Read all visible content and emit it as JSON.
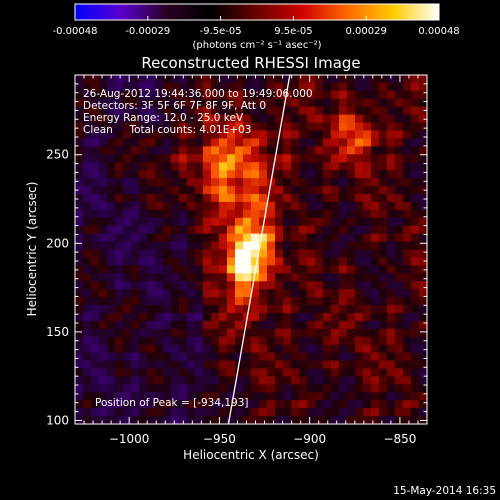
{
  "colorbar": {
    "tick_labels": [
      "-0.00048",
      "-0.00029",
      "-9.5e-05",
      "9.5e-05",
      "0.00029",
      "0.00048"
    ],
    "units_label": "(photons cm⁻² s⁻¹ asec⁻²)",
    "colors": [
      "#0000ff",
      "#5a00d0",
      "#2a0025",
      "#000000",
      "#6a0000",
      "#d00000",
      "#ff6a00",
      "#ffcc00",
      "#ffffff"
    ]
  },
  "chart_data": {
    "type": "heatmap",
    "title": "Reconstructed RHESSI Image",
    "xlabel": "Heliocentric X (arcsec)",
    "ylabel": "Heliocentric Y (arcsec)",
    "xlim": [
      -1030,
      -835
    ],
    "ylim": [
      98,
      295
    ],
    "x_ticks": [
      -1000,
      -950,
      -900,
      -850
    ],
    "x_tick_labels": [
      "−1000",
      "−950",
      "−900",
      "−850"
    ],
    "y_ticks": [
      100,
      150,
      200,
      250
    ],
    "y_tick_labels": [
      "100",
      "150",
      "200",
      "250"
    ],
    "peak_position": [
      -934,
      193
    ],
    "limb_line": [
      [
        -945,
        98
      ],
      [
        -911,
        295
      ]
    ],
    "annotations": [
      "26-Aug-2012 19:44:36.000 to 19:49:06.000",
      "Detectors: 3F 5F 6F 7F 8F 9F, Att 0",
      "Energy Range: 12.0 - 25.0 keV",
      "Clean     Total counts: 4.01E+03"
    ],
    "peak_label": "Position of Peak = [-934,193]"
  },
  "footer": {
    "date": "15-May-2014 16:35"
  }
}
